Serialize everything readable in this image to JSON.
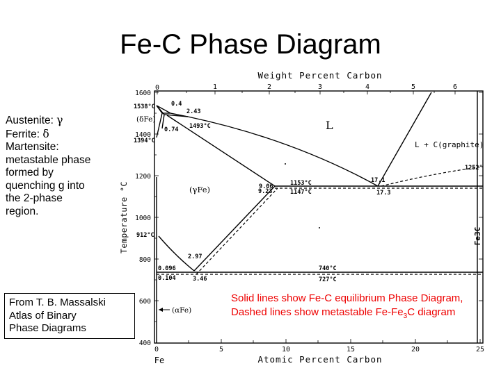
{
  "slide": {
    "title": "Fe-C Phase Diagram"
  },
  "notes": {
    "austenite_label": "Austenite:",
    "austenite_symbol": "γ",
    "ferrite_label": "Ferrite:",
    "ferrite_symbol": "δ",
    "martensite_lines": [
      "Martensite:",
      "metastable phase",
      "formed by",
      "quenching g into",
      "the 2-phase",
      "region."
    ]
  },
  "citation": {
    "lines": [
      "From T. B. Massalski",
      "Atlas of Binary",
      "Phase Diagrams"
    ]
  },
  "caption": {
    "text_before": "Solid lines show Fe-C equilibrium Phase Diagram, Dashed lines show metastable Fe-Fe",
    "subscript": "3",
    "text_after": "C diagram"
  },
  "diagram": {
    "top_axis_title": "Weight Percent Carbon",
    "top_ticks": [
      "0",
      "1",
      "2",
      "3",
      "4",
      "5",
      "6"
    ],
    "bottom_axis_title": "Atomic Percent Carbon",
    "bottom_ticks": [
      "0",
      "5",
      "10",
      "15",
      "20",
      "25"
    ],
    "bottom_left_label": "Fe",
    "y_axis_title": "Temperature °C",
    "y_ticks": [
      "1600",
      "1400",
      "1200",
      "1000",
      "800",
      "600",
      "400"
    ],
    "right_label": "Fe3C",
    "phase_labels": {
      "liquid": "L",
      "l_graphite": "L + C(graphite)",
      "gamma": "(γFe)",
      "delta": "(δFe)",
      "alpha": "(αFe)"
    },
    "point_labels": {
      "t1538": "1538°C",
      "t1394": "1394°C",
      "t912": "912°C",
      "c04": "0.4",
      "c243": "2.43",
      "t1493": "1493°C",
      "c074": "0.74",
      "c906": "9.06",
      "c923": "9.23",
      "t1153": "1153°C",
      "t1147": "1147°C",
      "c171": "17.1",
      "c173": "17.3",
      "t1252": "1252°",
      "c297": "2.97",
      "c346": "3.46",
      "c0096": "0.096",
      "c0104": "0.104",
      "t740": "740°C",
      "t727": "727°C"
    }
  }
}
